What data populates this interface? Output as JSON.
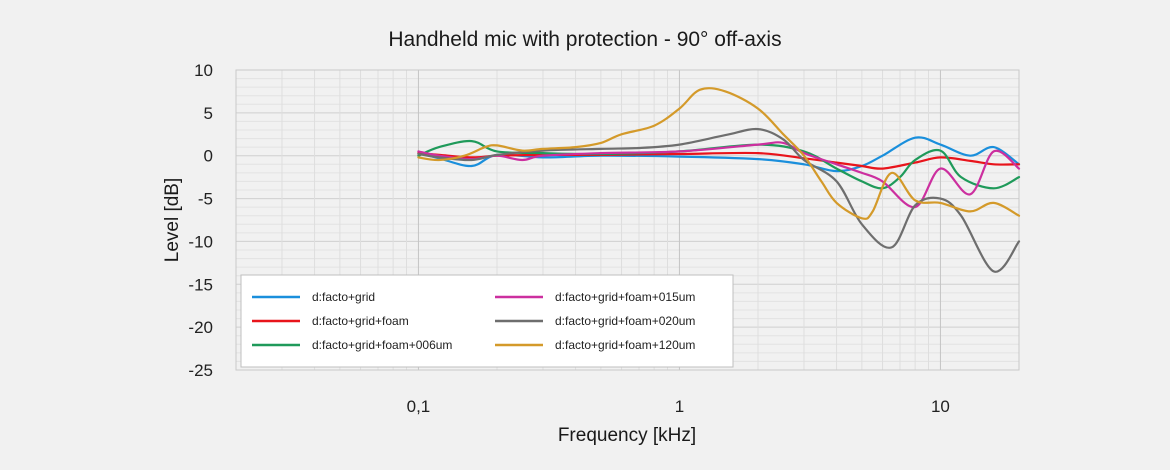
{
  "chart_data": {
    "type": "line",
    "title": "Handheld mic with protection - 90° off-axis",
    "xlabel": "Frequency [kHz]",
    "ylabel": "Level [dB]",
    "x_scale": "log",
    "xlim": [
      0.02,
      20
    ],
    "ylim": [
      -25,
      10
    ],
    "x_tick_labels": [
      {
        "value": 0.1,
        "label": "0,1"
      },
      {
        "value": 1,
        "label": "1"
      },
      {
        "value": 10,
        "label": "10"
      }
    ],
    "y_ticks": [
      10,
      5,
      0,
      -5,
      -10,
      -15,
      -20,
      -25
    ],
    "grid": true,
    "legend_position": "lower-left",
    "series": [
      {
        "name": "d:facto+grid",
        "color": "#1a8fdc",
        "x": [
          0.1,
          0.12,
          0.16,
          0.2,
          0.3,
          0.5,
          1,
          2,
          3,
          4,
          5,
          6,
          8,
          10,
          13,
          16,
          20
        ],
        "y": [
          0.3,
          -0.3,
          -1.2,
          0.1,
          -0.2,
          0,
          -0.1,
          -0.4,
          -1,
          -1.8,
          -1.2,
          0,
          2.1,
          1.3,
          0,
          1,
          -1
        ]
      },
      {
        "name": "d:facto+grid+foam",
        "color": "#e8141b",
        "x": [
          0.1,
          0.12,
          0.16,
          0.2,
          0.3,
          0.5,
          1,
          2,
          3,
          4,
          5,
          6,
          8,
          10,
          13,
          16,
          20
        ],
        "y": [
          0.3,
          0.1,
          -0.2,
          0,
          0.1,
          0.1,
          0.2,
          0.3,
          -0.3,
          -0.8,
          -1.2,
          -1.5,
          -0.8,
          -0.2,
          -0.6,
          -1,
          -1
        ]
      },
      {
        "name": "d:facto+grid+foam+006um",
        "color": "#1f9a5a",
        "x": [
          0.1,
          0.12,
          0.16,
          0.2,
          0.3,
          0.5,
          1,
          2,
          3,
          4,
          5,
          6,
          7,
          8,
          10,
          12,
          16,
          20
        ],
        "y": [
          0,
          1,
          1.7,
          0.5,
          0.3,
          0.2,
          0.5,
          1.3,
          0.5,
          -1.5,
          -3,
          -3.8,
          -2.5,
          -0.5,
          0.6,
          -2.5,
          -3.8,
          -2.5
        ]
      },
      {
        "name": "d:facto+grid+foam+015um",
        "color": "#cc2f9f",
        "x": [
          0.1,
          0.12,
          0.16,
          0.2,
          0.25,
          0.3,
          0.5,
          1,
          2,
          2.5,
          3,
          4,
          5,
          6,
          8,
          10,
          13,
          16,
          20
        ],
        "y": [
          0.5,
          0,
          -0.4,
          0,
          -0.5,
          0,
          0.3,
          0.5,
          1.3,
          1.5,
          0.3,
          -1,
          -2,
          -3,
          -6,
          -1.5,
          -4.5,
          0.5,
          -1.5
        ]
      },
      {
        "name": "d:facto+grid+foam+020um",
        "color": "#6e6e6e",
        "x": [
          0.1,
          0.12,
          0.16,
          0.2,
          0.3,
          0.5,
          0.7,
          1,
          1.5,
          2,
          2.5,
          3,
          4,
          5,
          6.5,
          8,
          10,
          12,
          16,
          20
        ],
        "y": [
          0.2,
          -0.2,
          -0.5,
          0.1,
          0.6,
          0.8,
          0.9,
          1.3,
          2.4,
          3.1,
          1.9,
          -0.5,
          -3,
          -8,
          -10.7,
          -5.8,
          -5,
          -7,
          -13.5,
          -10
        ]
      },
      {
        "name": "d:facto+grid+foam+120um",
        "color": "#d49a2a",
        "x": [
          0.1,
          0.12,
          0.15,
          0.18,
          0.2,
          0.25,
          0.3,
          0.4,
          0.5,
          0.6,
          0.8,
          1,
          1.2,
          1.5,
          2,
          2.5,
          3,
          3.5,
          4,
          5,
          5.5,
          6.5,
          8,
          10,
          13,
          16,
          20
        ],
        "y": [
          -0.2,
          -0.5,
          0,
          1,
          1.2,
          0.6,
          0.8,
          1,
          1.5,
          2.5,
          3.5,
          5.5,
          7.7,
          7.5,
          5.5,
          2.5,
          0,
          -3,
          -5.5,
          -7.3,
          -6.5,
          -2,
          -5.2,
          -5.5,
          -6.5,
          -5.5,
          -7
        ]
      }
    ]
  }
}
